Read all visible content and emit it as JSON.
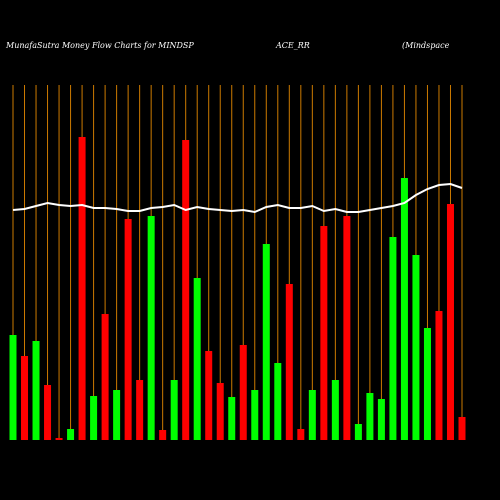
{
  "chart_data": {
    "type": "bar",
    "title": [
      "MunafaSutra  Money Flow  Charts for MINDSP",
      "ACE_RR",
      "(Mindspace"
    ],
    "values": [
      105,
      84,
      99,
      55,
      2,
      11,
      303,
      44,
      126,
      50,
      221,
      60,
      224,
      10,
      60,
      300,
      162,
      89,
      57,
      43,
      95,
      50,
      196,
      77,
      156,
      11,
      50,
      214,
      60,
      224,
      16,
      47,
      41,
      203,
      262,
      185,
      112,
      129,
      236,
      23
    ],
    "colors": [
      "#00ff00",
      "#ff0000",
      "#00ff00",
      "#ff0000",
      "#ff0000",
      "#00ff00",
      "#ff0000",
      "#00ff00",
      "#ff0000",
      "#00ff00",
      "#ff0000",
      "#ff0000",
      "#00ff00",
      "#ff0000",
      "#00ff00",
      "#ff0000",
      "#00ff00",
      "#ff0000",
      "#ff0000",
      "#00ff00",
      "#ff0000",
      "#00ff00",
      "#00ff00",
      "#00ff00",
      "#ff0000",
      "#ff0000",
      "#00ff00",
      "#ff0000",
      "#00ff00",
      "#ff0000",
      "#00ff00",
      "#00ff00",
      "#00ff00",
      "#00ff00",
      "#00ff00",
      "#00ff00",
      "#00ff00",
      "#ff0000",
      "#ff0000",
      "#ff0000"
    ],
    "line": {
      "color": "#ffffff",
      "values": [
        230,
        231,
        234,
        237,
        235,
        234,
        235,
        232,
        232,
        231,
        229,
        229,
        232,
        233,
        235,
        230,
        233,
        231,
        230,
        229,
        230,
        228,
        233,
        235,
        232,
        232,
        234,
        229,
        231,
        228,
        228,
        230,
        232,
        234,
        237,
        245,
        251,
        255,
        256,
        252
      ]
    },
    "grid_color": "#cc7a00",
    "ylim": [
      0,
      360
    ]
  }
}
